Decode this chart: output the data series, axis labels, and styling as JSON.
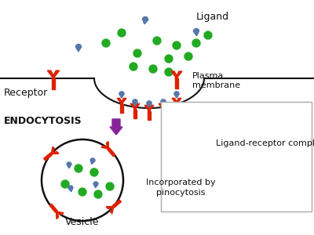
{
  "membrane_color": "#111111",
  "receptor_color": "#dd2200",
  "ligand_color": "#5577aa",
  "green_dot_color": "#22aa22",
  "arrow_color": "#882299",
  "text_color": "#111111",
  "labels": {
    "ligand": "Ligand",
    "receptor": "Receptor",
    "plasma_membrane": "Plasma\nmembrane",
    "endocytosis": "ENDOCYTOSIS",
    "vesicle": "Vesicle",
    "ligand_receptor_complex": "Ligand-receptor complex",
    "incorporated": "Incorporated by\npinocytosis"
  },
  "figsize": [
    4.0,
    3.0
  ],
  "dpi": 100
}
